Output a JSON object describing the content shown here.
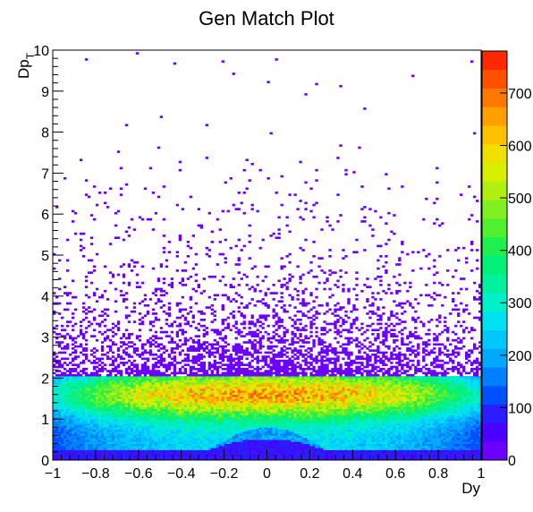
{
  "chart_data": {
    "type": "heatmap",
    "title": "Gen Match Plot",
    "xlabel": "Dy",
    "ylabel_main": "Dp",
    "ylabel_sub": "T",
    "xlim": [
      -1,
      1
    ],
    "ylim": [
      0,
      10
    ],
    "x_ticks": [
      -1,
      -0.8,
      -0.6,
      -0.4,
      -0.2,
      0,
      0.2,
      0.4,
      0.6,
      0.8,
      1
    ],
    "x_tick_labels": [
      "−1",
      "−0.8",
      "−0.6",
      "−0.4",
      "−0.2",
      "0",
      "0.2",
      "0.4",
      "0.6",
      "0.8",
      "1"
    ],
    "y_ticks": [
      0,
      1,
      2,
      3,
      4,
      5,
      6,
      7,
      8,
      9,
      10
    ],
    "y_tick_labels": [
      "0",
      "1",
      "2",
      "3",
      "4",
      "5",
      "6",
      "7",
      "8",
      "9",
      "10"
    ],
    "zlim": [
      0,
      780
    ],
    "z_ticks": [
      0,
      100,
      200,
      300,
      400,
      500,
      600,
      700
    ],
    "z_tick_labels": [
      "0",
      "100",
      "200",
      "300",
      "400",
      "500",
      "600",
      "700"
    ],
    "colorbar_colors": [
      "#6c00ff",
      "#4b00ff",
      "#2a1dff",
      "#0050ff",
      "#0080ff",
      "#00a8ff",
      "#00c8ff",
      "#00e0f0",
      "#00f0c8",
      "#00f0a0",
      "#00f078",
      "#1ef050",
      "#50f030",
      "#80f020",
      "#b0f010",
      "#d8f000",
      "#f0e000",
      "#ffc000",
      "#ffa000",
      "#ff7800",
      "#ff5000",
      "#ff2800"
    ],
    "structure": {
      "low_band": {
        "y_range": [
          0,
          0.25
        ],
        "level": 80
      },
      "main_band": {
        "y_range": [
          0.25,
          2.05
        ],
        "peak_y": 1.6,
        "peak_level": 640,
        "edge_level": 260
      },
      "central_dip": {
        "x_center": 0,
        "x_halfwidth": 0.28,
        "y_top": 0.55
      },
      "sparse_tail": {
        "y_range": [
          2.05,
          10
        ],
        "level": 1
      }
    }
  }
}
